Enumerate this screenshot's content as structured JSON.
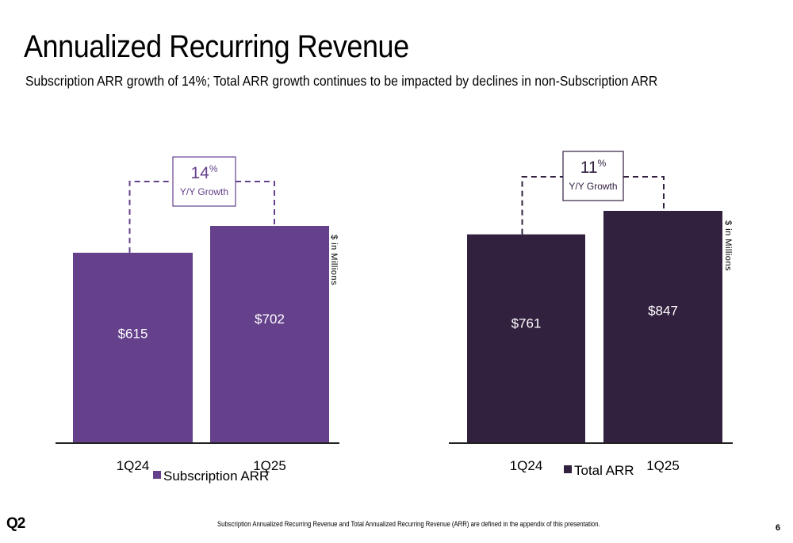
{
  "slide": {
    "title": "Annualized Recurring Revenue",
    "subtitle": "Subscription ARR growth of 14%; Total ARR growth continues to be impacted by declines in non-Subscription ARR",
    "footnote": "Subscription Annualized Recurring Revenue and Total Annualized Recurring Revenue (ARR) are defined in the appendix of this presentation.",
    "logo": "Q2",
    "page_number": "6"
  },
  "chart_data": [
    {
      "type": "bar",
      "categories": [
        "1Q24",
        "1Q25"
      ],
      "series": [
        {
          "name": "Subscription ARR",
          "values": [
            615,
            702
          ],
          "labels": [
            "$615",
            "$702"
          ]
        }
      ],
      "units_label": "$ in Millions",
      "growth": {
        "value": "14",
        "unit": "%",
        "label": "Y/Y Growth"
      },
      "color": "#65418c",
      "growth_color": "#65418c",
      "ylim": [
        0,
        702
      ],
      "legend": "bottom",
      "grid": false
    },
    {
      "type": "bar",
      "categories": [
        "1Q24",
        "1Q25"
      ],
      "series": [
        {
          "name": "Total ARR",
          "values": [
            761,
            847
          ],
          "labels": [
            "$761",
            "$847"
          ]
        }
      ],
      "units_label": "$ in Millions",
      "growth": {
        "value": "11",
        "unit": "%",
        "label": "Y/Y Growth"
      },
      "color": "#32203f",
      "growth_color": "#32203f",
      "ylim": [
        0,
        847
      ],
      "legend": "bottom",
      "grid": false
    }
  ]
}
